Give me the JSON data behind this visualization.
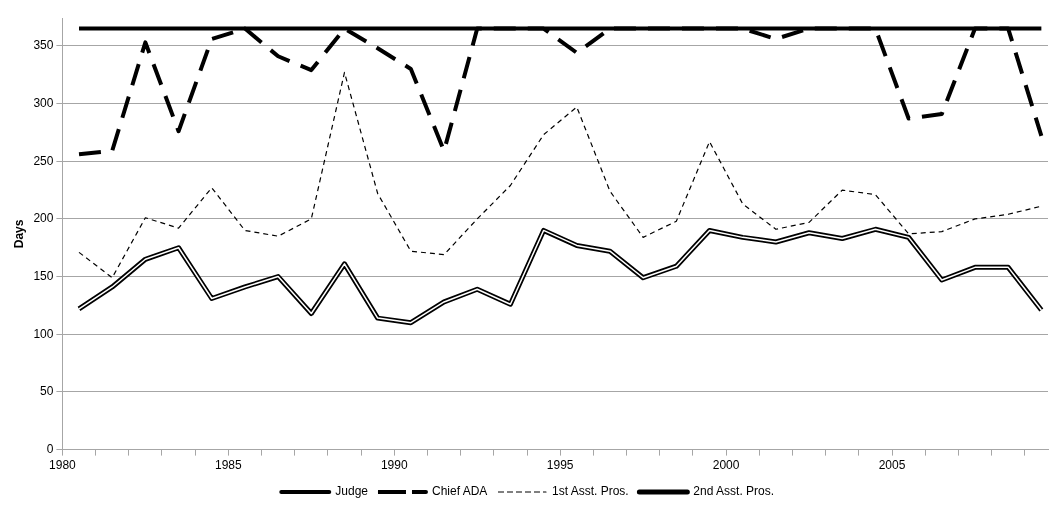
{
  "chart_data": {
    "type": "line",
    "ylabel": "Days",
    "x": [
      1980.5,
      1981.5,
      1982.5,
      1983.5,
      1984.5,
      1985.5,
      1986.5,
      1987.5,
      1988.5,
      1989.5,
      1990.5,
      1991.5,
      1992.5,
      1993.5,
      1994.5,
      1995.5,
      1996.5,
      1997.5,
      1998.5,
      1999.5,
      2000.5,
      2001.5,
      2002.5,
      2003.5,
      2004.5,
      2005.5,
      2006.5,
      2007.5,
      2008.5,
      2009.5
    ],
    "xlim": [
      1980,
      2009.7
    ],
    "xticks": [
      1980,
      {
        "value": 1981,
        "label": null
      },
      {
        "value": 1982,
        "label": null
      },
      {
        "value": 1983,
        "label": null
      },
      {
        "value": 1984,
        "label": null
      },
      1985,
      {
        "value": 1986,
        "label": null
      },
      {
        "value": 1987,
        "label": null
      },
      {
        "value": 1988,
        "label": null
      },
      {
        "value": 1989,
        "label": null
      },
      1990,
      {
        "value": 1991,
        "label": null
      },
      {
        "value": 1992,
        "label": null
      },
      {
        "value": 1993,
        "label": null
      },
      {
        "value": 1994,
        "label": null
      },
      1995,
      {
        "value": 1996,
        "label": null
      },
      {
        "value": 1997,
        "label": null
      },
      {
        "value": 1998,
        "label": null
      },
      {
        "value": 1999,
        "label": null
      },
      2000,
      {
        "value": 2001,
        "label": null
      },
      {
        "value": 2002,
        "label": null
      },
      {
        "value": 2003,
        "label": null
      },
      {
        "value": 2004,
        "label": null
      },
      2005,
      {
        "value": 2006,
        "label": null
      },
      {
        "value": 2007,
        "label": null
      },
      {
        "value": 2008,
        "label": null
      },
      {
        "value": 2009,
        "label": null
      }
    ],
    "ylim": [
      0,
      374
    ],
    "yticks": [
      0,
      50,
      100,
      150,
      200,
      250,
      300,
      350
    ],
    "grid": "y",
    "legend": "bottom",
    "marker": "none",
    "series": [
      {
        "name": "Judge",
        "color": "#000000",
        "line_style": "solid",
        "values": [
          365,
          365,
          365,
          365,
          365,
          365,
          365,
          365,
          365,
          365,
          365,
          365,
          365,
          365,
          365,
          365,
          365,
          365,
          365,
          365,
          365,
          365,
          365,
          365,
          365,
          365,
          365,
          365,
          365,
          365
        ]
      },
      {
        "name": "Chief ADA",
        "color": "#000000",
        "line_style": "dashed",
        "values": [
          256,
          259,
          353,
          276,
          356,
          365,
          341,
          329,
          365,
          348,
          330,
          259,
          365,
          365,
          365,
          344,
          365,
          365,
          365,
          365,
          365,
          356,
          365,
          365,
          365,
          287,
          291,
          365,
          365,
          272
        ]
      },
      {
        "name": "1st Asst. Pros.",
        "color": "#000000",
        "line_style": "dashed",
        "values": [
          171,
          149,
          201,
          192,
          227,
          190,
          185,
          200,
          327,
          222,
          172,
          169,
          200,
          229,
          273,
          297,
          224,
          184,
          198,
          267,
          213,
          191,
          197,
          225,
          221,
          187,
          189,
          200,
          204,
          211
        ]
      },
      {
        "name": "2nd Asst. Pros.",
        "color": "#000000",
        "line_style": "solid",
        "values": [
          122,
          141,
          165,
          175,
          131,
          141,
          150,
          118,
          161,
          114,
          110,
          128,
          139,
          126,
          190,
          177,
          172,
          149,
          159,
          190,
          184,
          180,
          188,
          183,
          191,
          184,
          147,
          158,
          158,
          121
        ]
      }
    ]
  }
}
